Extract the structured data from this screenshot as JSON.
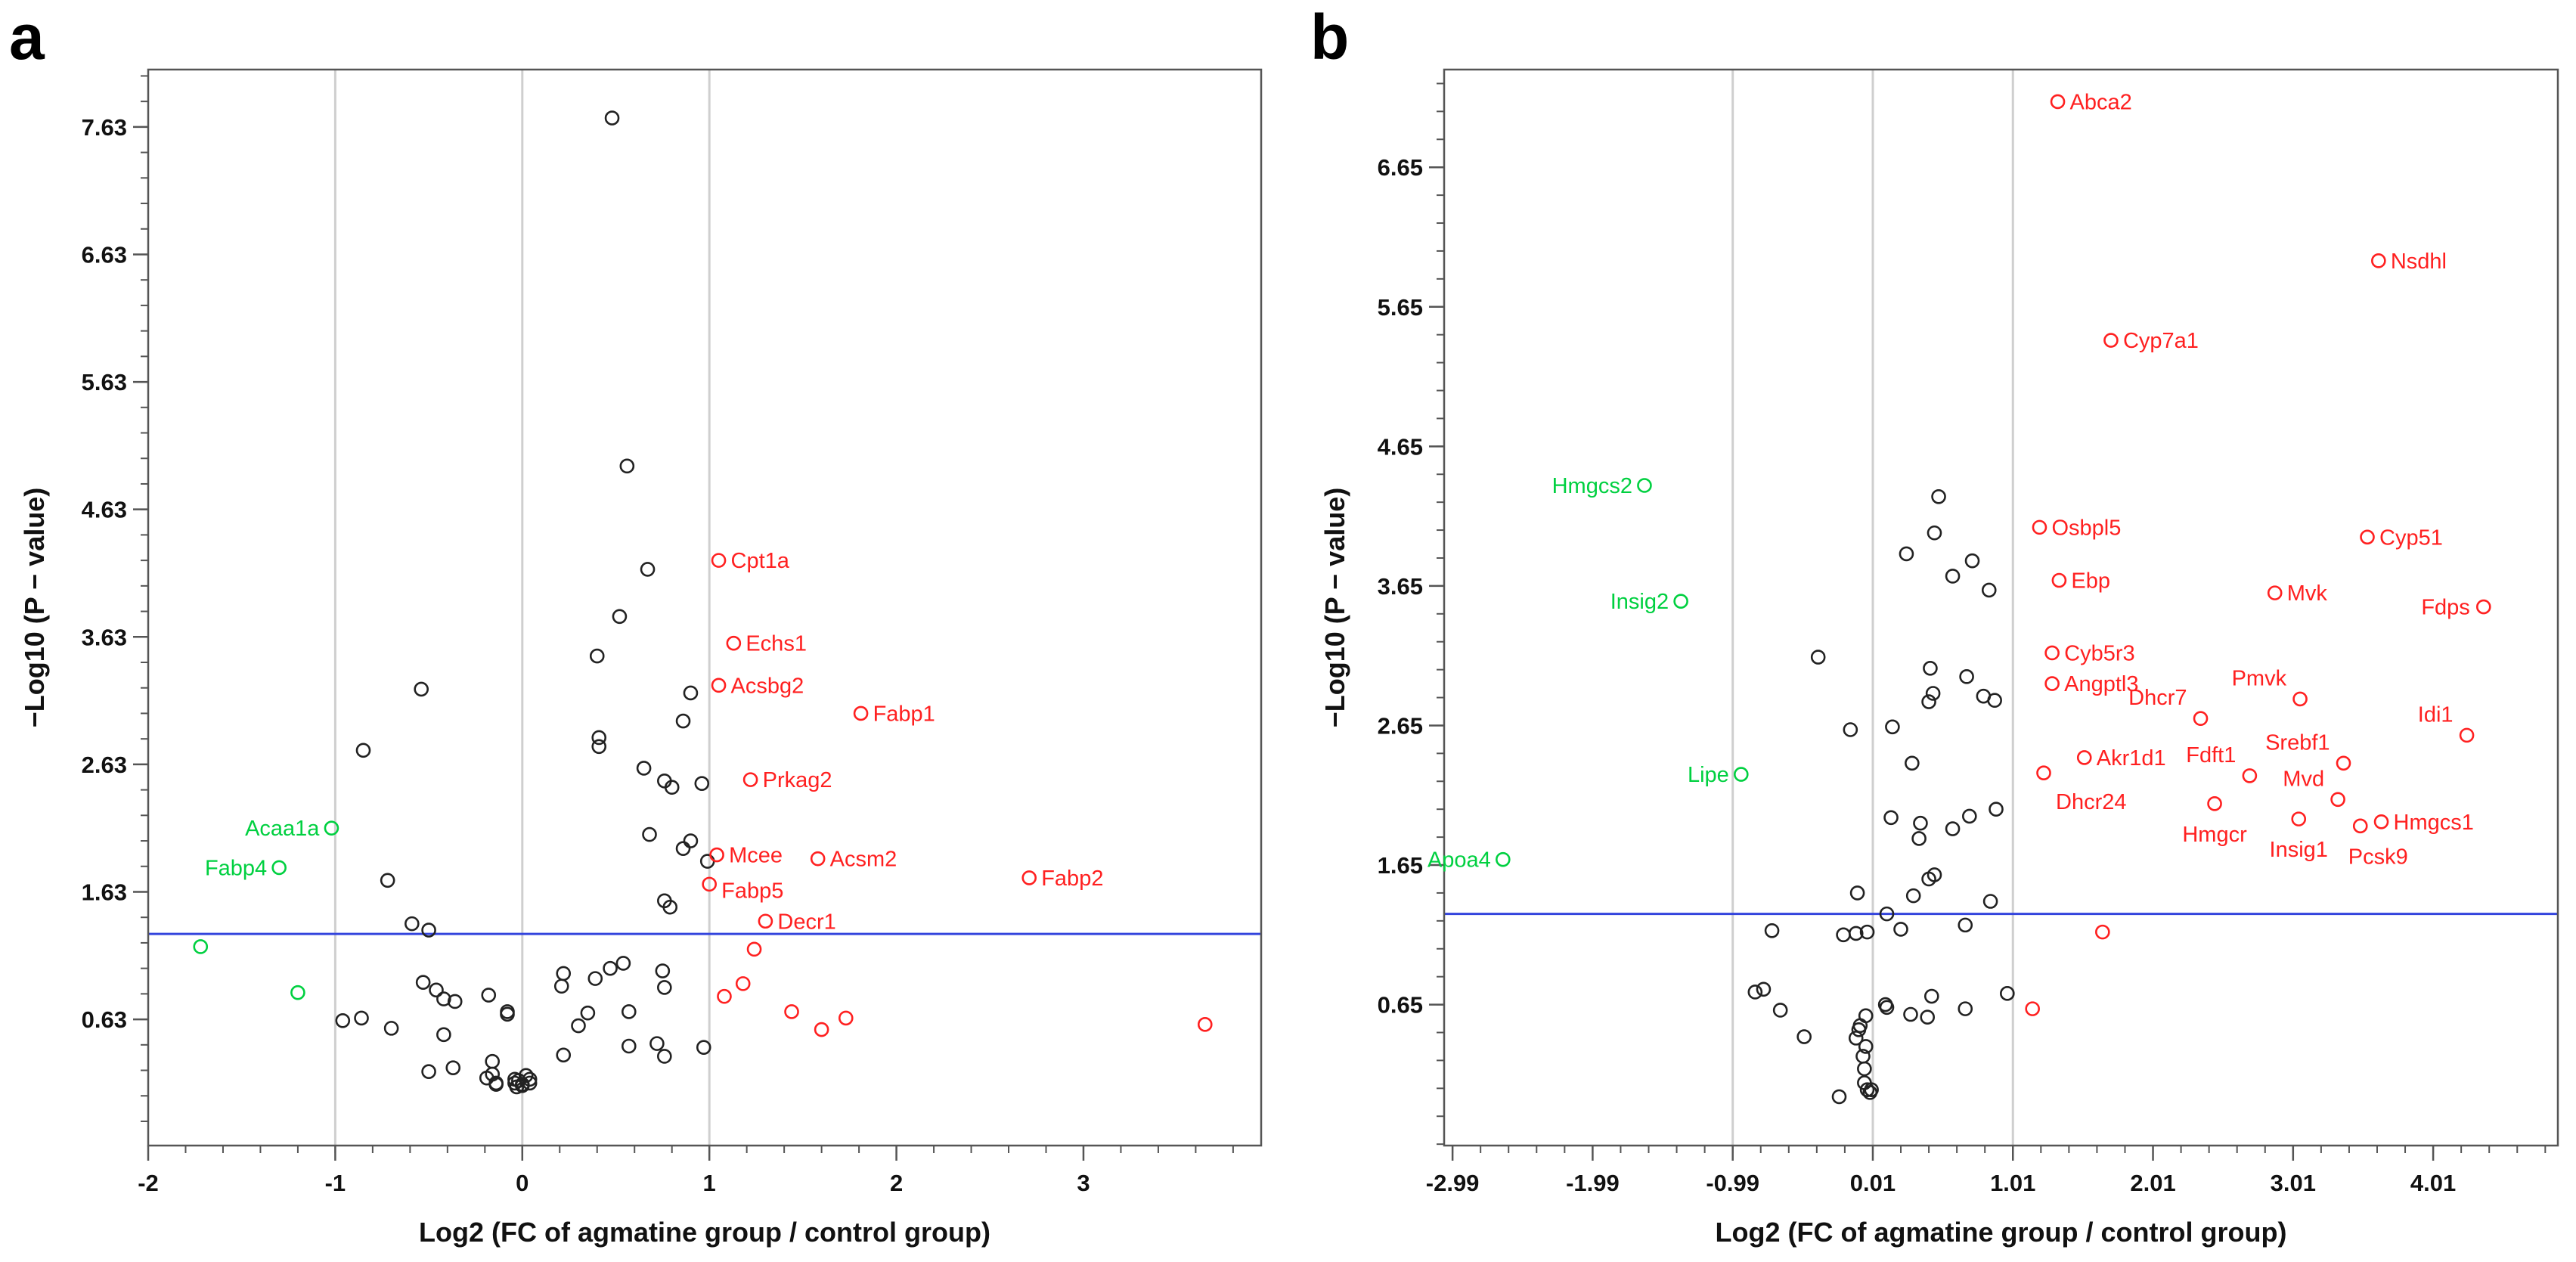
{
  "colors": {
    "up": "#ff2020",
    "down": "#00d040",
    "ns": "#222222",
    "threshold": "#3344dd",
    "grid": "#cfcfcf",
    "frame": "#555555"
  },
  "chart_data": [
    {
      "type": "scatter",
      "panel_label": "a",
      "xlabel": "Log2 (FC of agmatine group / control group)",
      "ylabel": "−Log10  (P − value)",
      "xlim": [
        -2.0,
        3.95
      ],
      "ylim": [
        -0.36,
        8.08
      ],
      "xticks": [
        -2,
        -1,
        0,
        1,
        2,
        3
      ],
      "xtick_labels": [
        "-2",
        "-1",
        "0",
        "1",
        "2",
        "3"
      ],
      "yticks": [
        0.63,
        1.63,
        2.63,
        3.63,
        4.63,
        5.63,
        6.63,
        7.63
      ],
      "ytick_labels": [
        "0.63",
        "1.63",
        "2.63",
        "3.63",
        "4.63",
        "5.63",
        "6.63",
        "7.63"
      ],
      "ygrid_minor": 0.2,
      "vlines": [
        -1,
        0,
        1
      ],
      "hline": 1.3,
      "labeled_points": [
        {
          "label": "Cpt1a",
          "x": 1.05,
          "y": 4.23,
          "group": "up"
        },
        {
          "label": "Echs1",
          "x": 1.13,
          "y": 3.58,
          "group": "up"
        },
        {
          "label": "Acsbg2",
          "x": 1.05,
          "y": 3.25,
          "group": "up"
        },
        {
          "label": "Fabp1",
          "x": 1.81,
          "y": 3.03,
          "group": "up"
        },
        {
          "label": "Prkag2",
          "x": 1.22,
          "y": 2.51,
          "group": "up"
        },
        {
          "label": "Mcee",
          "x": 1.04,
          "y": 1.92,
          "group": "up"
        },
        {
          "label": "Acsm2",
          "x": 1.58,
          "y": 1.89,
          "group": "up"
        },
        {
          "label": "Fabp5",
          "x": 1.0,
          "y": 1.69,
          "group": "up"
        },
        {
          "label": "Fabp2",
          "x": 2.71,
          "y": 1.74,
          "group": "up"
        },
        {
          "label": "Decr1",
          "x": 1.3,
          "y": 1.4,
          "group": "up"
        },
        {
          "label": "Acaa1a",
          "x": -1.02,
          "y": 2.13,
          "group": "down"
        },
        {
          "label": "Fabp4",
          "x": -1.3,
          "y": 1.82,
          "group": "down"
        }
      ],
      "other_points": {
        "up": [
          [
            1.24,
            1.18
          ],
          [
            1.18,
            0.91
          ],
          [
            1.08,
            0.81
          ],
          [
            1.44,
            0.69
          ],
          [
            1.73,
            0.64
          ],
          [
            1.6,
            0.55
          ],
          [
            3.65,
            0.59
          ]
        ],
        "down": [
          [
            -1.72,
            1.2
          ],
          [
            -1.2,
            0.84
          ]
        ],
        "ns": [
          [
            0.48,
            7.7
          ],
          [
            0.56,
            4.97
          ],
          [
            0.67,
            4.16
          ],
          [
            0.52,
            3.79
          ],
          [
            0.4,
            3.48
          ],
          [
            -0.54,
            3.22
          ],
          [
            0.41,
            2.84
          ],
          [
            0.41,
            2.77
          ],
          [
            0.9,
            3.19
          ],
          [
            0.86,
            2.97
          ],
          [
            -0.85,
            2.74
          ],
          [
            0.65,
            2.6
          ],
          [
            0.76,
            2.5
          ],
          [
            0.96,
            2.48
          ],
          [
            0.8,
            2.45
          ],
          [
            0.9,
            2.03
          ],
          [
            0.86,
            1.97
          ],
          [
            0.68,
            2.08
          ],
          [
            0.99,
            1.87
          ],
          [
            0.79,
            1.51
          ],
          [
            0.76,
            1.56
          ],
          [
            -0.72,
            1.72
          ],
          [
            -0.59,
            1.38
          ],
          [
            -0.5,
            1.33
          ],
          [
            0.54,
            1.07
          ],
          [
            0.47,
            1.03
          ],
          [
            0.75,
            1.01
          ],
          [
            0.22,
            0.99
          ],
          [
            0.76,
            0.88
          ],
          [
            0.21,
            0.89
          ],
          [
            0.39,
            0.95
          ],
          [
            -0.53,
            0.92
          ],
          [
            -0.46,
            0.86
          ],
          [
            -0.42,
            0.79
          ],
          [
            -0.36,
            0.77
          ],
          [
            -0.18,
            0.82
          ],
          [
            -0.08,
            0.67
          ],
          [
            -0.08,
            0.69
          ],
          [
            0.35,
            0.68
          ],
          [
            0.3,
            0.58
          ],
          [
            0.57,
            0.69
          ],
          [
            -0.86,
            0.64
          ],
          [
            -0.96,
            0.62
          ],
          [
            -0.7,
            0.56
          ],
          [
            -0.42,
            0.51
          ],
          [
            0.72,
            0.44
          ],
          [
            0.97,
            0.41
          ],
          [
            0.57,
            0.42
          ],
          [
            0.76,
            0.34
          ],
          [
            0.22,
            0.35
          ],
          [
            -0.37,
            0.25
          ],
          [
            -0.5,
            0.22
          ],
          [
            -0.16,
            0.3
          ],
          [
            -0.16,
            0.2
          ],
          [
            -0.19,
            0.17
          ],
          [
            -0.14,
            0.13
          ],
          [
            -0.14,
            0.12
          ],
          [
            -0.04,
            0.16
          ],
          [
            -0.02,
            0.15
          ],
          [
            0.02,
            0.19
          ],
          [
            0.04,
            0.16
          ],
          [
            -0.04,
            0.13
          ],
          [
            0.0,
            0.12
          ],
          [
            0.04,
            0.13
          ],
          [
            -0.03,
            0.1
          ],
          [
            0.0,
            0.11
          ]
        ]
      }
    },
    {
      "type": "scatter",
      "panel_label": "b",
      "xlabel": "Log2 (FC of agmatine group / control group)",
      "ylabel": "−Log10  (P − value)",
      "xlim": [
        -3.05,
        4.9
      ],
      "ylim": [
        -0.36,
        7.35
      ],
      "xticks": [
        -2.99,
        -1.99,
        -0.99,
        0.01,
        1.01,
        2.01,
        3.01,
        4.01
      ],
      "xtick_labels": [
        "-2.99",
        "-1.99",
        "-0.99",
        "0.01",
        "1.01",
        "2.01",
        "3.01",
        "4.01"
      ],
      "yticks": [
        0.65,
        1.65,
        2.65,
        3.65,
        4.65,
        5.65,
        6.65
      ],
      "ytick_labels": [
        "0.65",
        "1.65",
        "2.65",
        "3.65",
        "4.65",
        "5.65",
        "6.65"
      ],
      "ygrid_minor": 0.2,
      "vlines": [
        -0.99,
        0.01,
        1.01
      ],
      "hline": 1.3,
      "labeled_points": [
        {
          "label": "Abca2",
          "x": 1.33,
          "y": 7.12,
          "group": "up"
        },
        {
          "label": "Nsdhl",
          "x": 3.62,
          "y": 5.98,
          "group": "up"
        },
        {
          "label": "Cyp7a1",
          "x": 1.71,
          "y": 5.41,
          "group": "up"
        },
        {
          "label": "Osbpl5",
          "x": 1.2,
          "y": 4.07,
          "group": "up"
        },
        {
          "label": "Cyp51",
          "x": 3.54,
          "y": 4.0,
          "group": "up"
        },
        {
          "label": "Ebp",
          "x": 1.34,
          "y": 3.69,
          "group": "up"
        },
        {
          "label": "Mvk",
          "x": 2.88,
          "y": 3.6,
          "group": "up"
        },
        {
          "label": "Fdps",
          "x": 4.37,
          "y": 3.5,
          "group": "up"
        },
        {
          "label": "Cyb5r3",
          "x": 1.29,
          "y": 3.17,
          "group": "up"
        },
        {
          "label": "Pmvk",
          "x": 3.06,
          "y": 2.84,
          "group": "up"
        },
        {
          "label": "Angptl3",
          "x": 1.29,
          "y": 2.95,
          "group": "up"
        },
        {
          "label": "Dhcr7",
          "x": 2.35,
          "y": 2.7,
          "group": "up"
        },
        {
          "label": "Idi1",
          "x": 4.25,
          "y": 2.58,
          "group": "up"
        },
        {
          "label": "Srebf1",
          "x": 3.37,
          "y": 2.38,
          "group": "up"
        },
        {
          "label": "Akr1d1",
          "x": 1.52,
          "y": 2.42,
          "group": "up"
        },
        {
          "label": "Fdft1",
          "x": 2.7,
          "y": 2.29,
          "group": "up"
        },
        {
          "label": "Dhcr24",
          "x": 1.23,
          "y": 2.31,
          "group": "up"
        },
        {
          "label": "Mvd",
          "x": 3.33,
          "y": 2.12,
          "group": "up"
        },
        {
          "label": "Hmgcr",
          "x": 2.45,
          "y": 2.09,
          "group": "up"
        },
        {
          "label": "Hmgcs1",
          "x": 3.64,
          "y": 1.96,
          "group": "up"
        },
        {
          "label": "Insig1",
          "x": 3.05,
          "y": 1.98,
          "group": "up"
        },
        {
          "label": "Pcsk9",
          "x": 3.49,
          "y": 1.93,
          "group": "up"
        },
        {
          "label": "Hmgcs2",
          "x": -1.62,
          "y": 4.37,
          "group": "down"
        },
        {
          "label": "Insig2",
          "x": -1.36,
          "y": 3.54,
          "group": "down"
        },
        {
          "label": "Lipe",
          "x": -0.93,
          "y": 2.3,
          "group": "down"
        },
        {
          "label": "Apoa4",
          "x": -2.63,
          "y": 1.69,
          "group": "down"
        }
      ],
      "other_points": {
        "up": [
          [
            1.65,
            1.17
          ],
          [
            1.15,
            0.62
          ]
        ],
        "down": [],
        "ns": [
          [
            0.48,
            4.29
          ],
          [
            0.45,
            4.03
          ],
          [
            0.25,
            3.88
          ],
          [
            0.72,
            3.83
          ],
          [
            0.58,
            3.72
          ],
          [
            0.84,
            3.62
          ],
          [
            -0.38,
            3.14
          ],
          [
            0.42,
            3.06
          ],
          [
            0.68,
            3.0
          ],
          [
            0.44,
            2.88
          ],
          [
            0.8,
            2.86
          ],
          [
            0.88,
            2.83
          ],
          [
            0.41,
            2.82
          ],
          [
            0.15,
            2.64
          ],
          [
            -0.15,
            2.62
          ],
          [
            0.29,
            2.38
          ],
          [
            0.14,
            1.99
          ],
          [
            0.35,
            1.95
          ],
          [
            0.89,
            2.05
          ],
          [
            0.7,
            2.0
          ],
          [
            0.58,
            1.91
          ],
          [
            0.34,
            1.84
          ],
          [
            0.3,
            1.43
          ],
          [
            0.45,
            1.58
          ],
          [
            0.41,
            1.55
          ],
          [
            -0.1,
            1.45
          ],
          [
            0.85,
            1.39
          ],
          [
            0.11,
            1.3
          ],
          [
            0.67,
            1.22
          ],
          [
            0.21,
            1.19
          ],
          [
            -0.71,
            1.18
          ],
          [
            -0.11,
            1.16
          ],
          [
            -0.2,
            1.15
          ],
          [
            -0.03,
            1.17
          ],
          [
            -0.77,
            0.76
          ],
          [
            -0.83,
            0.74
          ],
          [
            0.97,
            0.73
          ],
          [
            0.43,
            0.71
          ],
          [
            0.1,
            0.65
          ],
          [
            0.11,
            0.63
          ],
          [
            0.28,
            0.58
          ],
          [
            -0.65,
            0.61
          ],
          [
            0.4,
            0.56
          ],
          [
            0.67,
            0.62
          ],
          [
            -0.04,
            0.57
          ],
          [
            -0.08,
            0.5
          ],
          [
            -0.11,
            0.41
          ],
          [
            -0.09,
            0.47
          ],
          [
            -0.04,
            0.35
          ],
          [
            -0.48,
            0.42
          ],
          [
            -0.06,
            0.28
          ],
          [
            -0.05,
            0.19
          ],
          [
            -0.05,
            0.09
          ],
          [
            -0.03,
            0.04
          ],
          [
            -0.01,
            0.02
          ],
          [
            0.0,
            0.04
          ],
          [
            -0.23,
            -0.01
          ]
        ]
      }
    }
  ]
}
